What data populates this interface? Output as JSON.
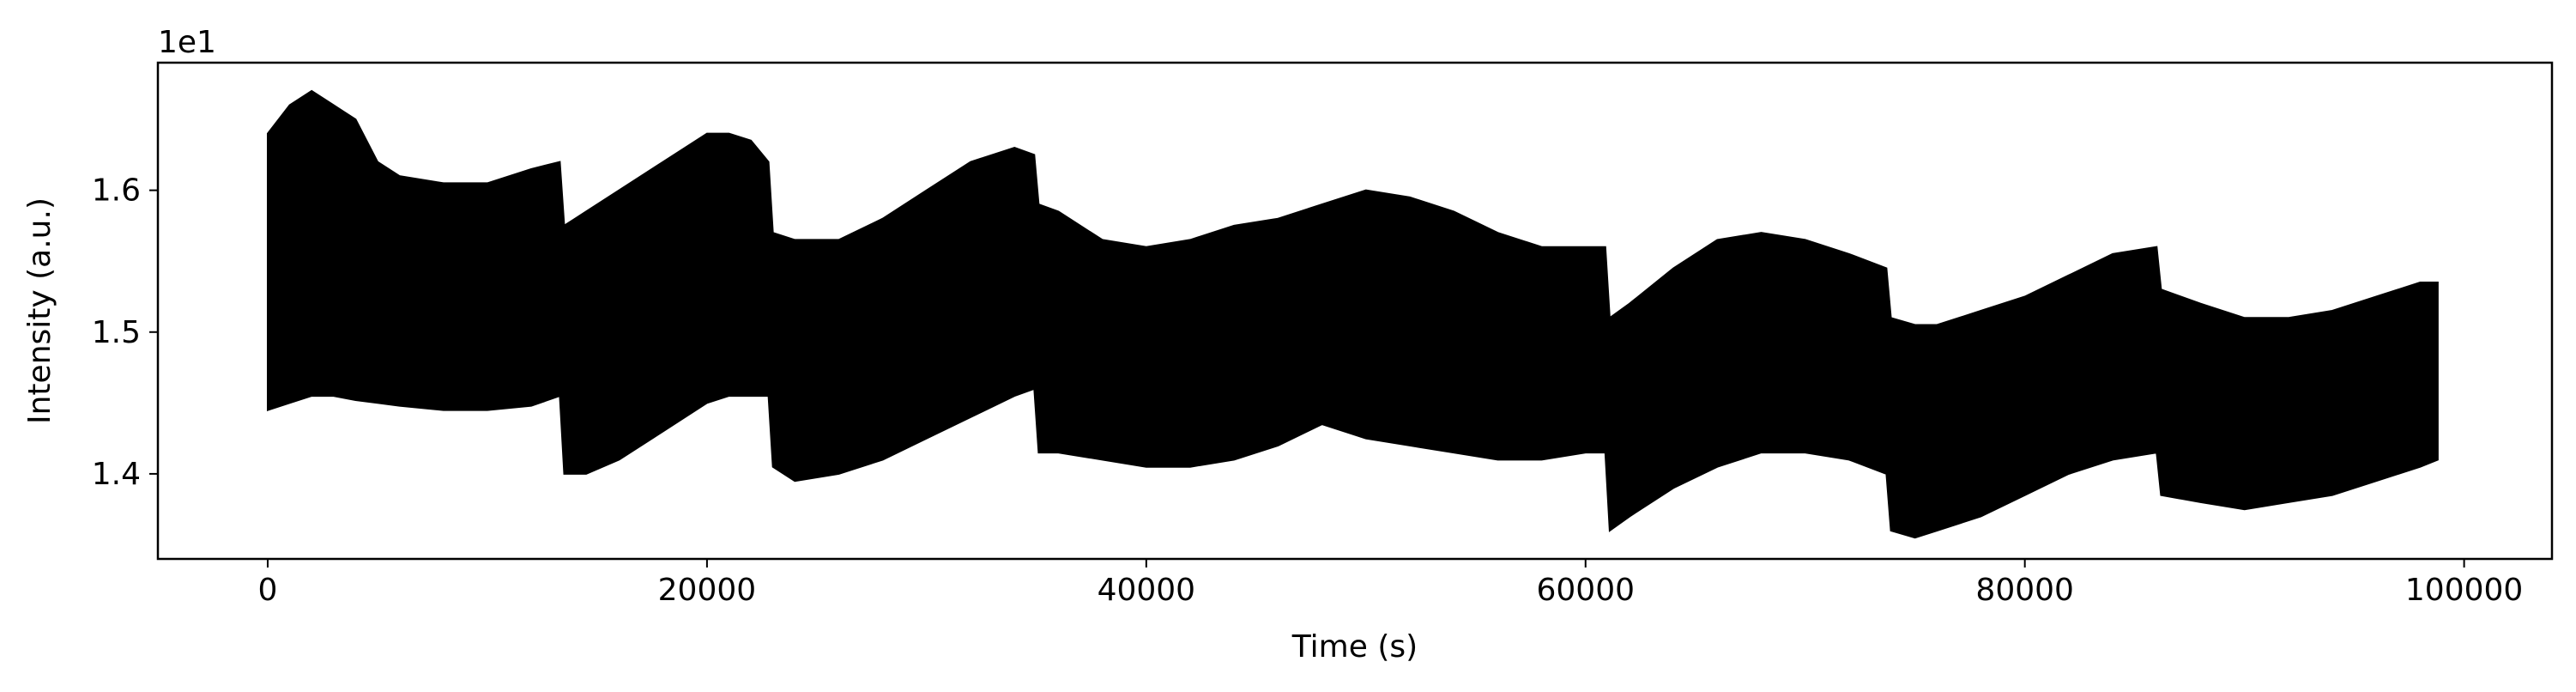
{
  "chart_data": {
    "type": "area",
    "xlabel": "Time (s)",
    "ylabel": "Intensity (a.u.)",
    "y_offset_label": "1e1",
    "xlim": [
      -5000,
      104000
    ],
    "ylim": [
      1.34,
      1.69
    ],
    "x_ticks": [
      0,
      20000,
      40000,
      60000,
      80000,
      100000
    ],
    "x_tick_labels": [
      "0",
      "20000",
      "40000",
      "60000",
      "80000",
      "100000"
    ],
    "y_ticks": [
      1.4,
      1.5,
      1.6
    ],
    "y_tick_labels": [
      "1.4",
      "1.5",
      "1.6"
    ],
    "grid": false,
    "line_color": "#000000",
    "series": [
      {
        "x": [
          0,
          1000,
          2000,
          3000,
          4000,
          5000,
          6000,
          8000,
          10000,
          12000,
          13300,
          13500,
          14500,
          16000,
          18000,
          20000,
          21000,
          22000,
          22800,
          23000,
          24000,
          26000,
          28000,
          30000,
          32000,
          34000,
          34900,
          35100,
          36000,
          38000,
          40000,
          42000,
          44000,
          46000,
          48000,
          50000,
          52000,
          54000,
          56000,
          58000,
          60000,
          60900,
          61100,
          62000,
          64000,
          66000,
          68000,
          70000,
          72000,
          73700,
          73900,
          75000,
          76000,
          78000,
          80000,
          82000,
          84000,
          86000,
          86200,
          88000,
          90000,
          92000,
          94000,
          96000,
          98000,
          98800
        ],
        "upper": [
          1.64,
          1.66,
          1.67,
          1.66,
          1.65,
          1.62,
          1.61,
          1.605,
          1.605,
          1.615,
          1.62,
          1.575,
          1.585,
          1.6,
          1.62,
          1.64,
          1.64,
          1.635,
          1.62,
          1.57,
          1.565,
          1.565,
          1.58,
          1.6,
          1.62,
          1.63,
          1.625,
          1.59,
          1.585,
          1.565,
          1.56,
          1.565,
          1.575,
          1.58,
          1.59,
          1.6,
          1.595,
          1.585,
          1.57,
          1.56,
          1.56,
          1.56,
          1.51,
          1.52,
          1.545,
          1.565,
          1.57,
          1.565,
          1.555,
          1.545,
          1.51,
          1.505,
          1.505,
          1.515,
          1.525,
          1.54,
          1.555,
          1.56,
          1.53,
          1.52,
          1.51,
          1.51,
          1.515,
          1.525,
          1.535,
          1.535
        ],
        "lower": [
          1.445,
          1.45,
          1.455,
          1.455,
          1.452,
          1.45,
          1.448,
          1.445,
          1.445,
          1.448,
          1.455,
          1.4,
          1.4,
          1.41,
          1.43,
          1.45,
          1.455,
          1.455,
          1.455,
          1.405,
          1.395,
          1.4,
          1.41,
          1.425,
          1.44,
          1.455,
          1.46,
          1.415,
          1.415,
          1.41,
          1.405,
          1.405,
          1.41,
          1.42,
          1.435,
          1.425,
          1.42,
          1.415,
          1.41,
          1.41,
          1.415,
          1.415,
          1.36,
          1.37,
          1.39,
          1.405,
          1.415,
          1.415,
          1.41,
          1.4,
          1.36,
          1.355,
          1.36,
          1.37,
          1.385,
          1.4,
          1.41,
          1.415,
          1.385,
          1.38,
          1.375,
          1.38,
          1.385,
          1.395,
          1.405,
          1.41
        ]
      }
    ]
  }
}
